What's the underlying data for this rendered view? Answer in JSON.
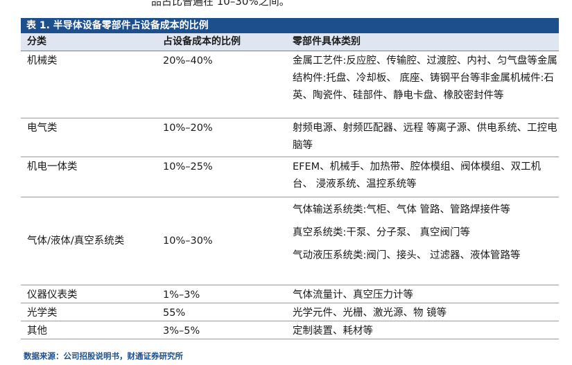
{
  "top_fragment": "品占比普遍在 10–30%之间。",
  "table": {
    "title": "表 1. 半导体设备零部件占设备成本的比例",
    "headers": [
      "分类",
      "占设备成本的比例",
      "零部件具体类别"
    ],
    "rows": [
      {
        "category": "机械类",
        "ratio": "20%–40%",
        "items": [
          "金属工艺件:反应腔、传输腔、过渡腔、内衬、匀气盘等金属结构件:托盘、冷却板、 底座、铸钢平台等非金属机械件:石英、陶瓷件、硅部件、静电卡盘、橡胶密封件等"
        ]
      },
      {
        "category": "电气类",
        "ratio": "10%–20%",
        "items": [
          "射频电源、射频匹配器、远程 等离子源、供电系统、工控电脑等"
        ]
      },
      {
        "category": "机电一体类",
        "ratio": "10%–25%",
        "items": [
          "EFEM、机械手、加热带、腔体模组、阀体模组、双工机台、 浸液系统、温控系统等"
        ]
      },
      {
        "category": "气体/液体/真空系统类",
        "ratio": "10%–30%",
        "items": [
          "气体输送系统类:气柜、气体 管路、管路焊接件等",
          "真空系统类:干泵、分子泵、 真空阀门等",
          "气动液压系统类:阀门、接头、 过滤器、液体管路等"
        ]
      },
      {
        "category": "仪器仪表类",
        "ratio": "1%–3%",
        "items": [
          "气体流量计、真空压力计等"
        ]
      },
      {
        "category": "光学类",
        "ratio": "55%",
        "items": [
          "光学元件、光栅、激光源、物 镜等"
        ]
      },
      {
        "category": "其他",
        "ratio": "3%–5%",
        "items": [
          "定制装置、耗材等"
        ]
      }
    ]
  },
  "source": "数据来源：公司招股说明书，财通证券研究所",
  "colors": {
    "title_bg": "#1d4f8c",
    "header_bg": "#dfe6f1",
    "source_text": "#1d4f8c"
  }
}
